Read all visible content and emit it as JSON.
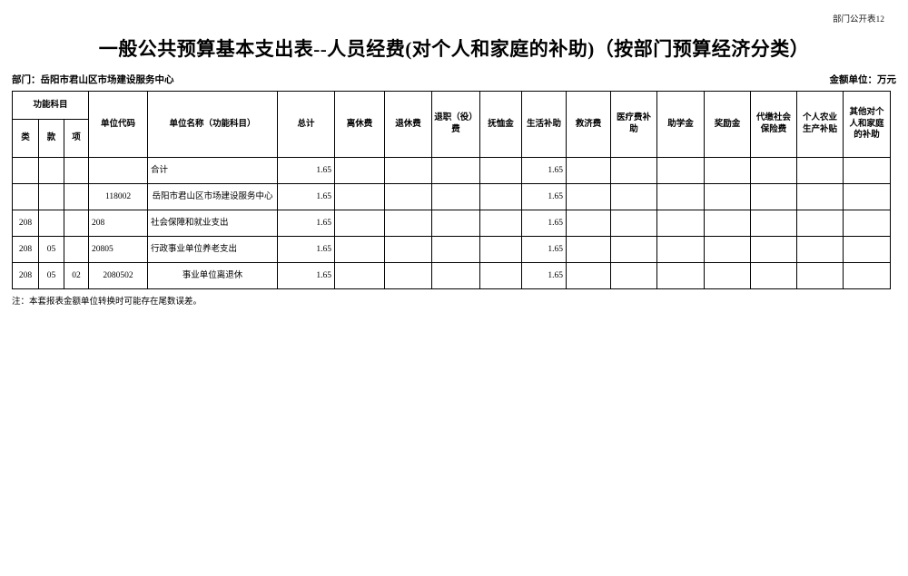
{
  "page": {
    "corner_label": "部门公开表12",
    "title": "一般公共预算基本支出表--人员经费(对个人和家庭的补助)（按部门预算经济分类）",
    "department_label": "部门：岳阳市君山区市场建设服务中心",
    "unit_label": "金额单位：万元",
    "note": "注：本套报表金额单位转换时可能存在尾数误差。"
  },
  "table": {
    "header": {
      "func_group": "功能科目",
      "func_cols": [
        "类",
        "款",
        "项"
      ],
      "columns": [
        "单位代码",
        "单位名称（功能科目）",
        "总计",
        "离休费",
        "退休费",
        "退职（役）费",
        "抚恤金",
        "生活补助",
        "救济费",
        "医疗费补助",
        "助学金",
        "奖励金",
        "代缴社会保险费",
        "个人农业生产补贴",
        "其他对个人和家庭的补助"
      ]
    },
    "rows": [
      {
        "cells": [
          "",
          "",
          "",
          "",
          "合计",
          "1.65",
          "",
          "",
          "",
          "",
          "1.65",
          "",
          "",
          "",
          "",
          "",
          "",
          ""
        ],
        "aligns": [
          "c",
          "c",
          "c",
          "c",
          "l",
          "r",
          "c",
          "c",
          "c",
          "c",
          "r",
          "c",
          "c",
          "c",
          "c",
          "c",
          "c",
          "c"
        ]
      },
      {
        "cells": [
          "",
          "",
          "",
          "118002",
          "岳阳市君山区市场建设服务中心",
          "1.65",
          "",
          "",
          "",
          "",
          "1.65",
          "",
          "",
          "",
          "",
          "",
          "",
          ""
        ],
        "aligns": [
          "c",
          "c",
          "c",
          "c",
          "c",
          "r",
          "c",
          "c",
          "c",
          "c",
          "r",
          "c",
          "c",
          "c",
          "c",
          "c",
          "c",
          "c"
        ]
      },
      {
        "cells": [
          "208",
          "",
          "",
          "208",
          "社会保障和就业支出",
          "1.65",
          "",
          "",
          "",
          "",
          "1.65",
          "",
          "",
          "",
          "",
          "",
          "",
          ""
        ],
        "aligns": [
          "c",
          "c",
          "c",
          "l",
          "l",
          "r",
          "c",
          "c",
          "c",
          "c",
          "r",
          "c",
          "c",
          "c",
          "c",
          "c",
          "c",
          "c"
        ]
      },
      {
        "cells": [
          "208",
          "05",
          "",
          "20805",
          "行政事业单位养老支出",
          "1.65",
          "",
          "",
          "",
          "",
          "1.65",
          "",
          "",
          "",
          "",
          "",
          "",
          ""
        ],
        "aligns": [
          "c",
          "c",
          "c",
          "l",
          "l",
          "r",
          "c",
          "c",
          "c",
          "c",
          "r",
          "c",
          "c",
          "c",
          "c",
          "c",
          "c",
          "c"
        ]
      },
      {
        "cells": [
          "208",
          "05",
          "02",
          "2080502",
          "事业单位离退休",
          "1.65",
          "",
          "",
          "",
          "",
          "1.65",
          "",
          "",
          "",
          "",
          "",
          "",
          ""
        ],
        "aligns": [
          "c",
          "c",
          "c",
          "c",
          "c",
          "r",
          "c",
          "c",
          "c",
          "c",
          "r",
          "c",
          "c",
          "c",
          "c",
          "c",
          "c",
          "c"
        ]
      }
    ]
  }
}
